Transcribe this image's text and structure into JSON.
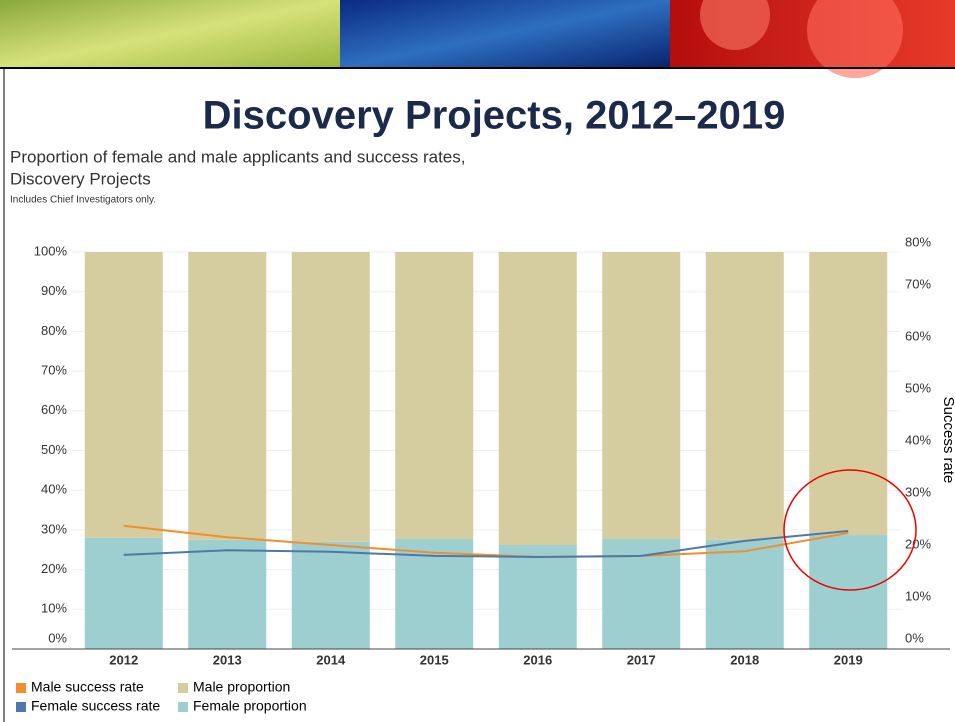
{
  "chart_data": {
    "type": "bar",
    "stacked": true,
    "title": "Discovery Projects, 2012–2019",
    "subtitle": [
      "Proportion of female and male applicants and success rates,",
      "Discovery Projects"
    ],
    "note": "Includes Chief Investigators only.",
    "y2label": "Success rate",
    "categories": [
      "2012",
      "2013",
      "2014",
      "2015",
      "2016",
      "2017",
      "2018",
      "2019"
    ],
    "series": [
      {
        "name": "Male success rate",
        "type": "line",
        "axis": "y2",
        "color": "#f28e2b",
        "values": [
          23.7,
          21.5,
          20.0,
          18.5,
          17.7,
          17.9,
          18.8,
          22.3
        ]
      },
      {
        "name": "Female success rate",
        "type": "line",
        "axis": "y2",
        "color": "#4e79a7",
        "values": [
          18.1,
          19.0,
          18.7,
          17.9,
          17.7,
          17.9,
          20.8,
          22.7
        ]
      },
      {
        "name": "Male proportion",
        "type": "bar",
        "color": "#d5cc9f",
        "values": [
          72.0,
          72.5,
          73.0,
          72.3,
          73.8,
          72.3,
          72.5,
          71.3
        ]
      },
      {
        "name": "Female proportion",
        "type": "bar",
        "color": "#9dcfd1",
        "values": [
          28.0,
          27.5,
          27.0,
          27.7,
          26.2,
          27.7,
          27.5,
          28.7
        ]
      }
    ],
    "ylim": [
      0,
      100
    ],
    "yticks": [
      {
        "value": 0,
        "label": "0%"
      },
      {
        "value": 10,
        "label": "10%"
      },
      {
        "value": 20,
        "label": "20%"
      },
      {
        "value": 30,
        "label": "30%"
      },
      {
        "value": 40,
        "label": "40%"
      },
      {
        "value": 50,
        "label": "50%"
      },
      {
        "value": 60,
        "label": "60%"
      },
      {
        "value": 70,
        "label": "70%"
      },
      {
        "value": 80,
        "label": "80%"
      },
      {
        "value": 90,
        "label": "90%"
      },
      {
        "value": 100,
        "label": "100%"
      }
    ],
    "y2lim": [
      0,
      80
    ],
    "y2ticks": [
      {
        "value": 0,
        "label": "0%"
      },
      {
        "value": 10,
        "label": "10%"
      },
      {
        "value": 20,
        "label": "20%"
      },
      {
        "value": 30,
        "label": "30%"
      },
      {
        "value": 40,
        "label": "40%"
      },
      {
        "value": 50,
        "label": "50%"
      },
      {
        "value": 60,
        "label": "60%"
      },
      {
        "value": 70,
        "label": "70%"
      },
      {
        "value": 80,
        "label": "80%"
      }
    ],
    "grid": true
  }
}
